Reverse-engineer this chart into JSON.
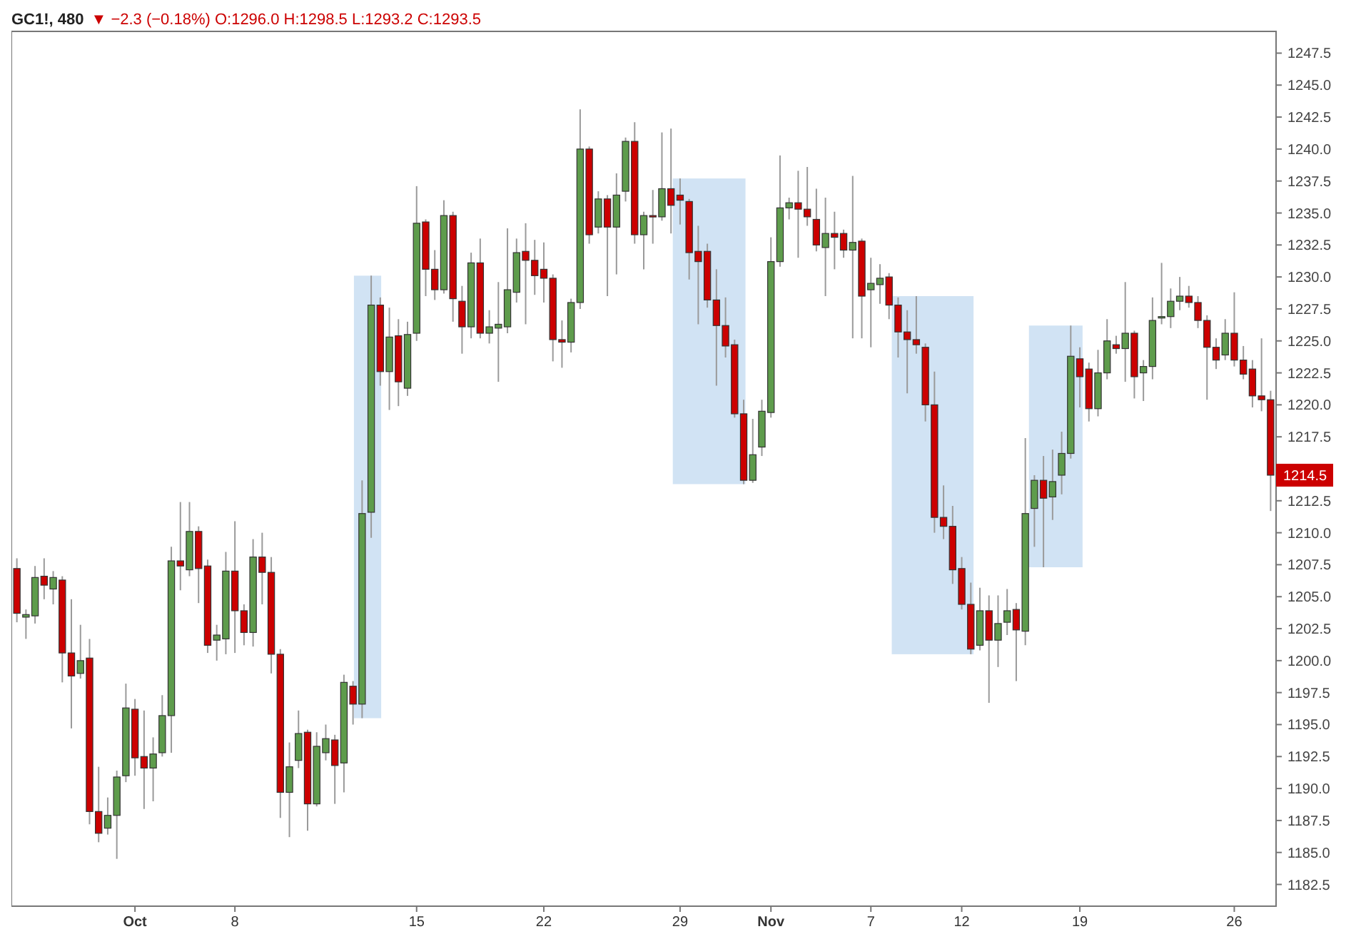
{
  "chart_data": {
    "type": "candlestick",
    "title": "GC1!, 480",
    "subtitle": "▼ −2.3 (−0.18%) O:1296.0 H:1298.5 L:1293.2 C:1293.5",
    "categories": [
      null,
      null,
      null,
      null,
      null,
      null,
      null,
      null,
      null,
      null,
      null,
      null,
      null,
      "Oct",
      null,
      null,
      null,
      null,
      null,
      null,
      null,
      null,
      null,
      null,
      "8",
      null,
      null,
      null,
      null,
      null,
      null,
      null,
      null,
      null,
      null,
      null,
      null,
      null,
      null,
      null,
      null,
      null,
      null,
      null,
      "15",
      null,
      null,
      null,
      null,
      null,
      null,
      null,
      null,
      null,
      null,
      null,
      null,
      null,
      "22",
      null,
      null,
      null,
      null,
      null,
      null,
      null,
      null,
      null,
      null,
      null,
      null,
      null,
      null,
      "29",
      null,
      null,
      null,
      null,
      null,
      null,
      null,
      null,
      null,
      "Nov",
      null,
      null,
      null,
      null,
      null,
      null,
      null,
      null,
      null,
      null,
      "7",
      null,
      null,
      null,
      null,
      null,
      null,
      null,
      null,
      null,
      "12",
      null,
      null,
      null,
      null,
      null,
      null,
      null,
      null,
      null,
      null,
      null,
      null,
      "19",
      null,
      null,
      null,
      null,
      null,
      null,
      null,
      null,
      null,
      null,
      null,
      null,
      null,
      null,
      null,
      null,
      "26",
      null,
      null,
      null,
      null
    ],
    "ohlc": [
      [
        1207.2,
        1208,
        1203,
        1203.7
      ],
      [
        1203.4,
        1204,
        1201.7,
        1203.6
      ],
      [
        1203.5,
        1207.4,
        1202.9,
        1206.5
      ],
      [
        1206.6,
        1208,
        1204.8,
        1205.9
      ],
      [
        1205.6,
        1207,
        1204.4,
        1206.5
      ],
      [
        1206.3,
        1206.6,
        1198.3,
        1200.6
      ],
      [
        1200.6,
        1204.8,
        1194.7,
        1198.8
      ],
      [
        1199,
        1202.8,
        1198.6,
        1200
      ],
      [
        1200.2,
        1201.7,
        1187.2,
        1188.2
      ],
      [
        1188.2,
        1191.7,
        1185.8,
        1186.5
      ],
      [
        1186.9,
        1189.3,
        1186.4,
        1187.9
      ],
      [
        1187.9,
        1191.4,
        1184.5,
        1190.9
      ],
      [
        1191,
        1198.2,
        1190.5,
        1196.3
      ],
      [
        1196.2,
        1197,
        1191,
        1192.4
      ],
      [
        1192.5,
        1196.1,
        1188.4,
        1191.6
      ],
      [
        1191.6,
        1194,
        1189,
        1192.7
      ],
      [
        1192.8,
        1197.3,
        1192.5,
        1195.7
      ],
      [
        1195.7,
        1208.9,
        1192.8,
        1207.8
      ],
      [
        1207.8,
        1212.4,
        1205.5,
        1207.4
      ],
      [
        1207.1,
        1212.4,
        1206.6,
        1210.1
      ],
      [
        1210.1,
        1210.5,
        1204.5,
        1207.2
      ],
      [
        1207.4,
        1207.9,
        1200.6,
        1201.2
      ],
      [
        1201.6,
        1202.8,
        1200,
        1202
      ],
      [
        1201.7,
        1208.5,
        1200.5,
        1207
      ],
      [
        1207,
        1210.9,
        1200.6,
        1203.9
      ],
      [
        1203.9,
        1204.4,
        1201.2,
        1202.2
      ],
      [
        1202.2,
        1209.5,
        1201.1,
        1208.1
      ],
      [
        1208.1,
        1210,
        1204.4,
        1206.9
      ],
      [
        1206.9,
        1208.1,
        1199,
        1200.5
      ],
      [
        1200.5,
        1200.9,
        1187.7,
        1189.7
      ],
      [
        1189.7,
        1193.6,
        1186.2,
        1191.7
      ],
      [
        1192.2,
        1196.1,
        1191.6,
        1194.3
      ],
      [
        1194.4,
        1194.6,
        1186.7,
        1188.8
      ],
      [
        1188.8,
        1194.4,
        1188.6,
        1193.3
      ],
      [
        1192.8,
        1195,
        1192.2,
        1193.9
      ],
      [
        1193.8,
        1194.2,
        1188.8,
        1191.8
      ],
      [
        1192,
        1198.9,
        1189.7,
        1198.3
      ],
      [
        1198,
        1198.4,
        1195,
        1196.6
      ],
      [
        1196.6,
        1214.1,
        1195.5,
        1211.5
      ],
      [
        1211.6,
        1230.1,
        1209.6,
        1227.8
      ],
      [
        1227.8,
        1228.4,
        1221.5,
        1222.6
      ],
      [
        1222.6,
        1227.6,
        1219.6,
        1225.3
      ],
      [
        1225.4,
        1226.7,
        1219.9,
        1221.8
      ],
      [
        1221.3,
        1226.5,
        1220.7,
        1225.5
      ],
      [
        1225.6,
        1237.1,
        1225,
        1234.2
      ],
      [
        1234.3,
        1234.5,
        1228.5,
        1230.6
      ],
      [
        1230.6,
        1232.1,
        1228.2,
        1229
      ],
      [
        1229,
        1236,
        1228.7,
        1234.8
      ],
      [
        1234.8,
        1235.1,
        1226.5,
        1228.3
      ],
      [
        1228.1,
        1229.3,
        1224,
        1226.1
      ],
      [
        1226.1,
        1231.9,
        1225.2,
        1231.1
      ],
      [
        1231.1,
        1233,
        1225.2,
        1225.6
      ],
      [
        1225.6,
        1227.4,
        1224.8,
        1226.1
      ],
      [
        1226,
        1229.6,
        1221.8,
        1226.3
      ],
      [
        1226.1,
        1233.8,
        1225.6,
        1229
      ],
      [
        1228.8,
        1233,
        1228,
        1231.9
      ],
      [
        1232,
        1234.2,
        1226.3,
        1231.3
      ],
      [
        1231.3,
        1232.9,
        1228.6,
        1230.1
      ],
      [
        1230.6,
        1232.7,
        1228,
        1229.9
      ],
      [
        1229.9,
        1230.2,
        1223.4,
        1225.1
      ],
      [
        1225.1,
        1226.6,
        1222.9,
        1224.9
      ],
      [
        1224.9,
        1228.3,
        1224.1,
        1228
      ],
      [
        1228,
        1243.1,
        1227.5,
        1240
      ],
      [
        1240,
        1240.2,
        1232.6,
        1233.3
      ],
      [
        1233.9,
        1236.7,
        1233.4,
        1236.1
      ],
      [
        1236.1,
        1236.4,
        1228.5,
        1233.9
      ],
      [
        1233.9,
        1238.1,
        1230.2,
        1236.4
      ],
      [
        1236.7,
        1240.9,
        1235.9,
        1240.6
      ],
      [
        1240.6,
        1242.1,
        1232.6,
        1233.3
      ],
      [
        1233.3,
        1235.1,
        1230.6,
        1234.8
      ],
      [
        1234.8,
        1236.8,
        1232.6,
        1234.7
      ],
      [
        1234.7,
        1241.3,
        1234.4,
        1236.9
      ],
      [
        1236.9,
        1241.6,
        1233.4,
        1235.6
      ],
      [
        1236.4,
        1237.7,
        1234.1,
        1236
      ],
      [
        1235.9,
        1236.1,
        1229.8,
        1231.9
      ],
      [
        1232,
        1234,
        1226.3,
        1231.2
      ],
      [
        1232,
        1232.6,
        1227.6,
        1228.2
      ],
      [
        1228.2,
        1230.6,
        1221.5,
        1226.2
      ],
      [
        1226.2,
        1228.4,
        1223.7,
        1224.6
      ],
      [
        1224.7,
        1225.1,
        1219,
        1219.3
      ],
      [
        1219.3,
        1220.4,
        1213.8,
        1214.1
      ],
      [
        1214.1,
        1218.9,
        1213.9,
        1216.1
      ],
      [
        1216.7,
        1220.4,
        1216,
        1219.5
      ],
      [
        1219.4,
        1233.1,
        1219,
        1231.2
      ],
      [
        1231.2,
        1239.5,
        1230.8,
        1235.4
      ],
      [
        1235.4,
        1236.2,
        1234.5,
        1235.8
      ],
      [
        1235.8,
        1238.3,
        1231.5,
        1235.3
      ],
      [
        1235.3,
        1238.6,
        1234,
        1234.7
      ],
      [
        1234.5,
        1236.9,
        1232,
        1232.5
      ],
      [
        1232.3,
        1236.2,
        1228.5,
        1233.4
      ],
      [
        1233.4,
        1235.1,
        1230.6,
        1233.1
      ],
      [
        1233.4,
        1233.7,
        1231.5,
        1232.1
      ],
      [
        1232.1,
        1237.9,
        1225.2,
        1232.7
      ],
      [
        1232.8,
        1233,
        1225.2,
        1228.5
      ],
      [
        1229,
        1231.5,
        1224.5,
        1229.5
      ],
      [
        1229.4,
        1231,
        1227.9,
        1229.9
      ],
      [
        1230,
        1230.3,
        1226.7,
        1227.8
      ],
      [
        1227.8,
        1228.4,
        1223.7,
        1225.7
      ],
      [
        1225.7,
        1227.4,
        1220.9,
        1225.1
      ],
      [
        1225.1,
        1228.5,
        1224,
        1224.7
      ],
      [
        1224.5,
        1224.8,
        1218.7,
        1220
      ],
      [
        1220,
        1222.6,
        1210,
        1211.2
      ],
      [
        1211.2,
        1213.7,
        1209.5,
        1210.5
      ],
      [
        1210.5,
        1212.1,
        1206,
        1207.1
      ],
      [
        1207.2,
        1208.1,
        1204,
        1204.4
      ],
      [
        1204.4,
        1206.1,
        1200.5,
        1200.9
      ],
      [
        1201.2,
        1205.7,
        1200.8,
        1203.9
      ],
      [
        1203.9,
        1205.1,
        1196.7,
        1201.6
      ],
      [
        1201.6,
        1205.1,
        1199.5,
        1202.9
      ],
      [
        1203,
        1205.6,
        1202,
        1203.9
      ],
      [
        1204,
        1204.5,
        1198.4,
        1202.4
      ],
      [
        1202.3,
        1217.4,
        1201.2,
        1211.5
      ],
      [
        1211.9,
        1214.5,
        1208.9,
        1214.1
      ],
      [
        1214.1,
        1216,
        1207.3,
        1212.7
      ],
      [
        1212.8,
        1216.5,
        1211,
        1214
      ],
      [
        1214.5,
        1217.9,
        1213,
        1216.2
      ],
      [
        1216.2,
        1226.2,
        1215.8,
        1223.8
      ],
      [
        1223.6,
        1224.5,
        1219.8,
        1222.2
      ],
      [
        1222.8,
        1223.3,
        1218.7,
        1219.7
      ],
      [
        1219.7,
        1224.3,
        1219.1,
        1222.5
      ],
      [
        1222.5,
        1226.7,
        1222,
        1225
      ],
      [
        1224.7,
        1225.4,
        1224,
        1224.4
      ],
      [
        1224.4,
        1229.6,
        1221.8,
        1225.6
      ],
      [
        1225.6,
        1225.8,
        1220.5,
        1222.2
      ],
      [
        1222.5,
        1223.5,
        1220.3,
        1223
      ],
      [
        1223,
        1228.4,
        1222,
        1226.6
      ],
      [
        1226.8,
        1231.1,
        1226.3,
        1226.9
      ],
      [
        1226.9,
        1229.1,
        1226,
        1228.1
      ],
      [
        1228.1,
        1230,
        1227.4,
        1228.5
      ],
      [
        1228.5,
        1229.3,
        1227.6,
        1228
      ],
      [
        1228,
        1228.5,
        1226,
        1226.6
      ],
      [
        1226.6,
        1227,
        1220.4,
        1224.5
      ],
      [
        1224.5,
        1225.2,
        1222.8,
        1223.5
      ],
      [
        1223.9,
        1226.7,
        1223.5,
        1225.6
      ],
      [
        1225.6,
        1228.8,
        1223,
        1223.5
      ],
      [
        1223.5,
        1224.6,
        1222,
        1222.4
      ],
      [
        1222.8,
        1223.5,
        1219.8,
        1220.7
      ],
      [
        1220.7,
        1225.2,
        1219.5,
        1220.4
      ],
      [
        1220.4,
        1221.1,
        1211.7,
        1214.5
      ]
    ],
    "colors": [
      "#cc0000",
      "#5e9c4c",
      "#5e9c4c",
      "#cc0000",
      "#5e9c4c",
      "#cc0000",
      "#cc0000",
      "#5e9c4c",
      "#cc0000",
      "#cc0000",
      "#5e9c4c",
      "#5e9c4c",
      "#5e9c4c",
      "#cc0000",
      "#cc0000",
      "#5e9c4c",
      "#5e9c4c",
      "#5e9c4c",
      "#cc0000",
      "#5e9c4c",
      "#cc0000",
      "#cc0000",
      "#5e9c4c",
      "#5e9c4c",
      "#cc0000",
      "#cc0000",
      "#5e9c4c",
      "#cc0000",
      "#cc0000",
      "#cc0000",
      "#5e9c4c",
      "#5e9c4c",
      "#cc0000",
      "#5e9c4c",
      "#5e9c4c",
      "#cc0000",
      "#5e9c4c",
      "#cc0000",
      "#5e9c4c",
      "#5e9c4c",
      "#cc0000",
      "#5e9c4c",
      "#cc0000",
      "#5e9c4c",
      "#5e9c4c",
      "#cc0000",
      "#cc0000",
      "#5e9c4c",
      "#cc0000",
      "#cc0000",
      "#5e9c4c",
      "#cc0000",
      "#5e9c4c",
      "#5e9c4c",
      "#5e9c4c",
      "#5e9c4c",
      "#cc0000",
      "#cc0000",
      "#cc0000",
      "#cc0000",
      "#cc0000",
      "#5e9c4c",
      "#5e9c4c",
      "#cc0000",
      "#5e9c4c",
      "#cc0000",
      "#5e9c4c",
      "#5e9c4c",
      "#cc0000",
      "#5e9c4c",
      "#cc0000",
      "#5e9c4c",
      "#cc0000",
      "#cc0000",
      "#cc0000",
      "#cc0000",
      "#cc0000",
      "#cc0000",
      "#cc0000",
      "#cc0000",
      "#cc0000",
      "#5e9c4c",
      "#5e9c4c",
      "#5e9c4c",
      "#5e9c4c",
      "#5e9c4c",
      "#cc0000",
      "#cc0000",
      "#cc0000",
      "#5e9c4c",
      "#cc0000",
      "#cc0000",
      "#5e9c4c",
      "#cc0000",
      "#5e9c4c",
      "#5e9c4c",
      "#cc0000",
      "#cc0000",
      "#cc0000",
      "#cc0000",
      "#cc0000",
      "#cc0000",
      "#cc0000",
      "#cc0000",
      "#cc0000",
      "#cc0000",
      "#5e9c4c",
      "#cc0000",
      "#5e9c4c",
      "#5e9c4c",
      "#cc0000",
      "#5e9c4c",
      "#5e9c4c",
      "#cc0000",
      "#5e9c4c",
      "#5e9c4c",
      "#5e9c4c",
      "#cc0000",
      "#cc0000",
      "#5e9c4c",
      "#5e9c4c",
      "#cc0000",
      "#5e9c4c",
      "#cc0000",
      "#5e9c4c",
      "#5e9c4c",
      "#5e9c4c",
      "#5e9c4c",
      "#5e9c4c",
      "#cc0000",
      "#cc0000",
      "#cc0000",
      "#cc0000",
      "#5e9c4c",
      "#cc0000",
      "#cc0000",
      "#cc0000",
      "#cc0000",
      "#cc0000"
    ],
    "ylim": [
      1180.8,
      1249.2
    ],
    "yticks": [
      1182.5,
      {
        "value": 1185,
        "label": "1185.0"
      },
      1187.5,
      {
        "value": 1190,
        "label": "1190.0"
      },
      1192.5,
      {
        "value": 1195,
        "label": "1195.0"
      },
      1197.5,
      {
        "value": 1200,
        "label": "1200.0"
      },
      1202.5,
      {
        "value": 1205,
        "label": "1205.0"
      },
      1207.5,
      {
        "value": 1210,
        "label": "1210.0"
      },
      1212.5,
      {
        "value": 1215,
        "label": null
      },
      1217.5,
      {
        "value": 1220,
        "label": "1220.0"
      },
      1222.5,
      {
        "value": 1225,
        "label": "1225.0"
      },
      1227.5,
      {
        "value": 1230,
        "label": "1230.0"
      },
      1232.5,
      {
        "value": 1235,
        "label": "1235.0"
      },
      1237.5,
      {
        "value": 1240,
        "label": "1240.0"
      },
      1242.5,
      {
        "value": 1245,
        "label": "1245.0"
      },
      1247.5
    ],
    "annotations": [
      "1214.5"
    ]
  }
}
